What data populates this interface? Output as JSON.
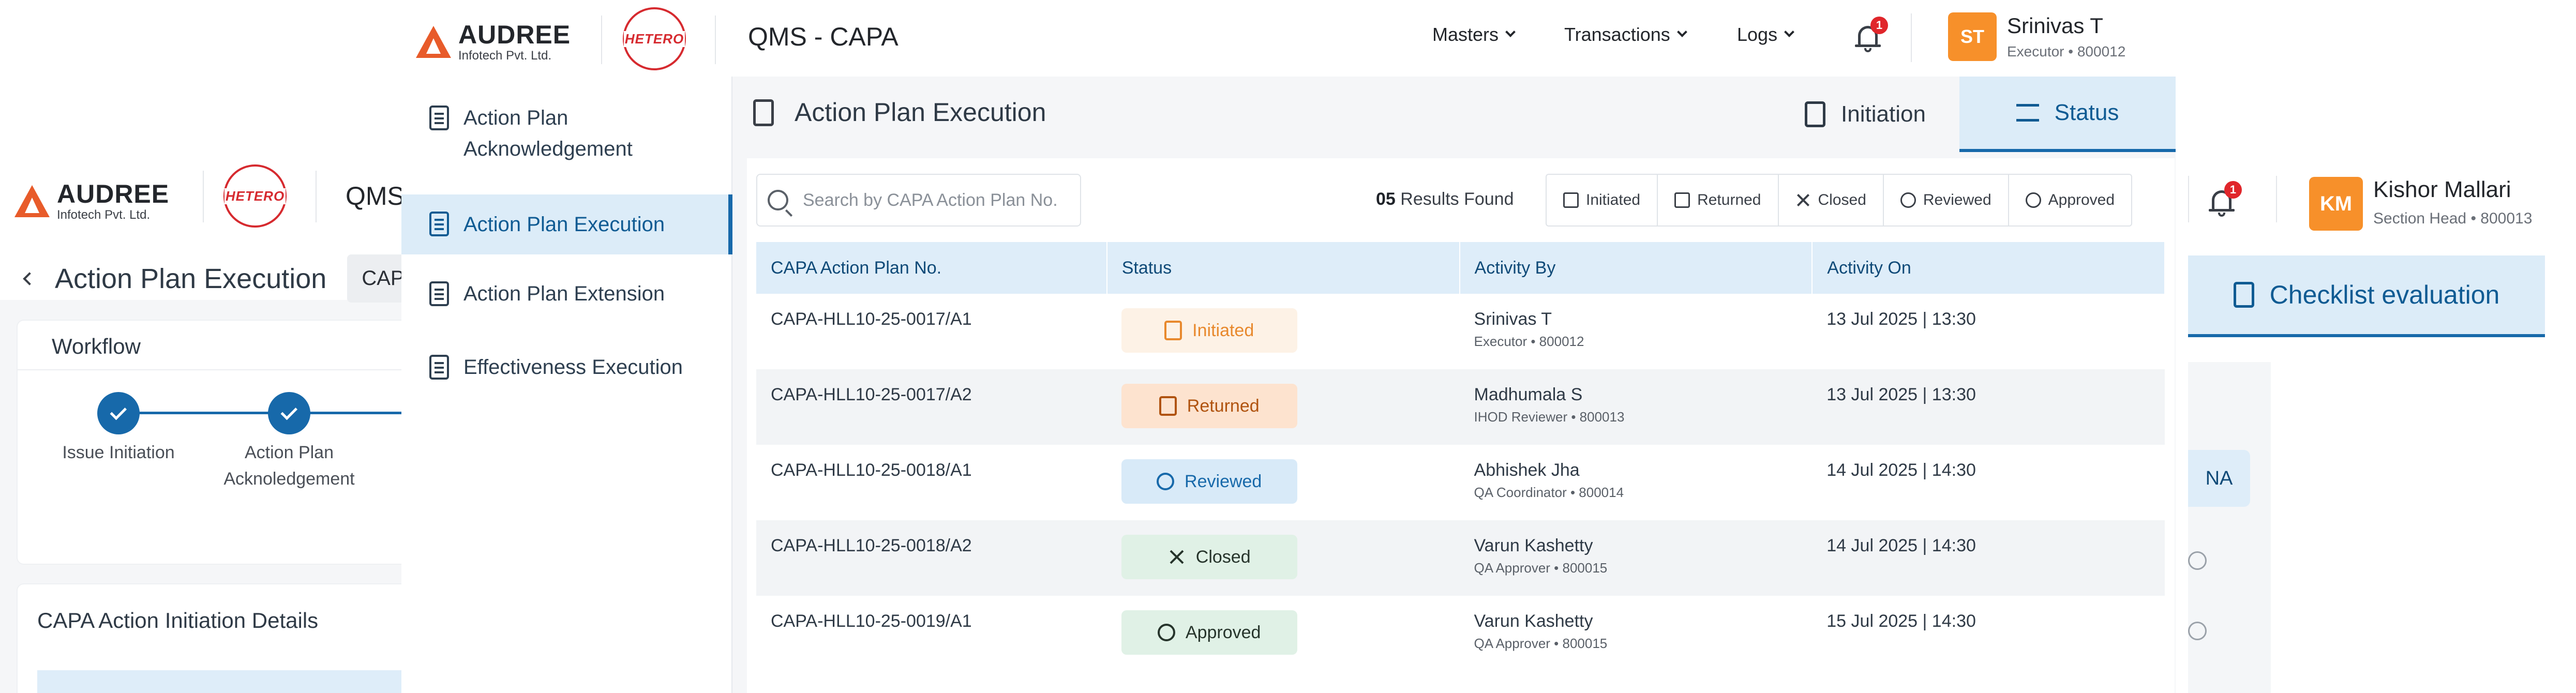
{
  "brand": {
    "audree_name": "AUDREE",
    "audree_sub": "Infotech Pvt. Ltd.",
    "hetero": "HETERO",
    "app_title": "QMS - CAPA",
    "app_title_bg": "QMS"
  },
  "top_nav": {
    "menus": [
      {
        "label": "Masters"
      },
      {
        "label": "Transactions"
      },
      {
        "label": "Logs"
      }
    ],
    "notification_count": "1",
    "user": {
      "initials": "ST",
      "name": "Srinivas T",
      "role": "Executor • 800012"
    }
  },
  "background": {
    "page_title": "Action Plan Execution",
    "ref_field": "CAPA-",
    "workflow_title": "Workflow",
    "steps": [
      {
        "label": "Issue Initiation"
      },
      {
        "label": "Action Plan Acknoledgement"
      }
    ],
    "details_title": "CAPA Action Initiation Details",
    "notification_count": "1",
    "user": {
      "initials": "KM",
      "name": "Kishor Mallari",
      "role": "Section Head • 800013"
    },
    "checklist_tab": "Checklist evaluation"
  },
  "drawer": {
    "items": [
      {
        "label": "Action Plan Acknowledgement",
        "icon": "doc-check-icon"
      },
      {
        "label": "Action Plan Execution",
        "icon": "doc-gear-icon"
      },
      {
        "label": "Action Plan Extension",
        "icon": "doc-extend-icon"
      },
      {
        "label": "Effectiveness Execution",
        "icon": "doc-list-icon"
      }
    ]
  },
  "panel": {
    "title": "Action Plan Execution",
    "tabs": [
      {
        "label": "Initiation"
      },
      {
        "label": "Status"
      }
    ],
    "search_placeholder": "Search by CAPA Action Plan No.",
    "results_count": "05",
    "results_text": "Results Found",
    "filters": [
      "Initiated",
      "Returned",
      "Closed",
      "Reviewed",
      "Approved"
    ],
    "columns": [
      "CAPA Action Plan No.",
      "Status",
      "Activity By",
      "Activity On"
    ],
    "rows": [
      {
        "plan": "CAPA-HLL10-25-0017/A1",
        "status": "Initiated",
        "by": "Srinivas T",
        "role": "Executor • 800012",
        "on": "13 Jul 2025 | 13:30"
      },
      {
        "plan": "CAPA-HLL10-25-0017/A2",
        "status": "Returned",
        "by": "Madhumala S",
        "role": "IHOD Reviewer • 800013",
        "on": "13 Jul 2025 | 13:30"
      },
      {
        "plan": "CAPA-HLL10-25-0018/A1",
        "status": "Reviewed",
        "by": "Abhishek Jha",
        "role": "QA Coordinator • 800014",
        "on": "14 Jul 2025 | 14:30"
      },
      {
        "plan": "CAPA-HLL10-25-0018/A2",
        "status": "Closed",
        "by": "Varun Kashetty",
        "role": "QA Approver • 800015",
        "on": "14 Jul 2025 | 14:30"
      },
      {
        "plan": "CAPA-HLL10-25-0019/A1",
        "status": "Approved",
        "by": "Varun Kashetty",
        "role": "QA Approver • 800015",
        "on": "15 Jul 2025 | 14:30"
      }
    ]
  },
  "colors": {
    "primary": "#1769aa",
    "accent_orange": "#f7902a",
    "hetero_red": "#d62a2f"
  }
}
